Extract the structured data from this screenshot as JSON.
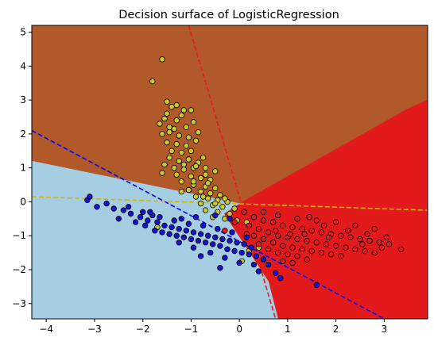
{
  "chart_data": {
    "type": "scatter",
    "title": "Decision surface of LogisticRegression",
    "xlabel": "",
    "ylabel": "",
    "xlim": [
      -4.3,
      3.9
    ],
    "ylim": [
      -3.45,
      5.2
    ],
    "xticks": [
      -4,
      -3,
      -2,
      -1,
      0,
      1,
      2,
      3
    ],
    "yticks": [
      -3,
      -2,
      -1,
      0,
      1,
      2,
      3,
      4,
      5
    ],
    "grid": false,
    "regions": [
      {
        "class": "yellow",
        "color": "#b15928",
        "polygon": [
          [
            -4.3,
            5.2
          ],
          [
            3.9,
            5.2
          ],
          [
            3.9,
            3.0
          ],
          [
            3.5,
            2.75
          ],
          [
            0,
            -0.05
          ],
          [
            -4.3,
            1.2
          ]
        ]
      },
      {
        "class": "red",
        "color": "#e31a1c",
        "polygon": [
          [
            0,
            -0.05
          ],
          [
            3.5,
            2.75
          ],
          [
            3.9,
            3.0
          ],
          [
            3.9,
            -3.45
          ],
          [
            0.8,
            -3.45
          ],
          [
            0.6,
            -2.35
          ],
          [
            -0.32,
            -0.35
          ]
        ]
      },
      {
        "class": "blue",
        "color": "#a6cee3",
        "polygon": [
          [
            -4.3,
            1.2
          ],
          [
            0,
            -0.05
          ],
          [
            -0.32,
            -0.35
          ],
          [
            0.6,
            -2.35
          ],
          [
            0.8,
            -3.45
          ],
          [
            -4.3,
            -3.45
          ]
        ]
      }
    ],
    "decision_lines": [
      {
        "color": "#e31a1c",
        "x": [
          -1.05,
          0.75
        ],
        "y": [
          5.2,
          -3.45
        ]
      },
      {
        "color": "#0000ff",
        "x": [
          -4.3,
          3.0
        ],
        "y": [
          2.1,
          -3.45
        ]
      },
      {
        "color": "#d4b500",
        "x": [
          -4.3,
          3.9
        ],
        "y": [
          0.15,
          -0.25
        ]
      }
    ],
    "series": [
      {
        "color": "#c8c832",
        "points": [
          [
            -1.6,
            4.2
          ],
          [
            -1.8,
            3.55
          ],
          [
            -1.5,
            2.95
          ],
          [
            -1.4,
            2.8
          ],
          [
            -1.5,
            2.6
          ],
          [
            -1.0,
            2.7
          ],
          [
            -1.2,
            2.55
          ],
          [
            -1.55,
            2.45
          ],
          [
            -1.65,
            2.3
          ],
          [
            -1.3,
            2.4
          ],
          [
            -1.45,
            2.2
          ],
          [
            -1.35,
            2.15
          ],
          [
            -1.1,
            2.2
          ],
          [
            -0.95,
            2.35
          ],
          [
            -1.6,
            2.0
          ],
          [
            -1.25,
            1.95
          ],
          [
            -1.05,
            1.9
          ],
          [
            -1.5,
            1.75
          ],
          [
            -1.3,
            1.7
          ],
          [
            -1.1,
            1.65
          ],
          [
            -0.9,
            1.8
          ],
          [
            -1.4,
            1.5
          ],
          [
            -1.2,
            1.45
          ],
          [
            -1.0,
            1.5
          ],
          [
            -0.75,
            1.3
          ],
          [
            -1.45,
            1.3
          ],
          [
            -1.25,
            1.2
          ],
          [
            -1.05,
            1.25
          ],
          [
            -0.85,
            1.15
          ],
          [
            -1.55,
            1.1
          ],
          [
            -1.35,
            1.0
          ],
          [
            -1.15,
            0.95
          ],
          [
            -0.95,
            1.0
          ],
          [
            -0.7,
            1.0
          ],
          [
            -0.5,
            0.9
          ],
          [
            -1.6,
            0.85
          ],
          [
            -1.3,
            0.8
          ],
          [
            -1.0,
            0.75
          ],
          [
            -0.8,
            0.7
          ],
          [
            -0.6,
            0.65
          ],
          [
            -1.2,
            0.6
          ],
          [
            -0.95,
            0.5
          ],
          [
            -0.7,
            0.45
          ],
          [
            -0.5,
            0.4
          ],
          [
            -1.05,
            0.35
          ],
          [
            -0.8,
            0.3
          ],
          [
            -0.6,
            0.25
          ],
          [
            -0.4,
            0.2
          ],
          [
            -0.9,
            0.15
          ],
          [
            -0.65,
            0.1
          ],
          [
            -0.45,
            0.05
          ],
          [
            -0.25,
            0.0
          ],
          [
            -0.8,
            -0.05
          ],
          [
            -0.55,
            -0.1
          ],
          [
            -0.35,
            -0.15
          ],
          [
            -0.1,
            -0.2
          ],
          [
            -0.7,
            -0.25
          ],
          [
            -0.45,
            -0.3
          ],
          [
            -0.2,
            -0.35
          ],
          [
            -0.55,
            -0.45
          ],
          [
            -0.3,
            -0.5
          ],
          [
            -0.05,
            -0.55
          ],
          [
            0.15,
            -0.6
          ],
          [
            -1.7,
            -0.75
          ],
          [
            0.2,
            -1.45
          ],
          [
            0.4,
            -1.35
          ],
          [
            0.05,
            -1.75
          ],
          [
            -0.9,
            1.05
          ],
          [
            -1.15,
            1.1
          ],
          [
            -0.75,
            0.15
          ],
          [
            -1.2,
            0.3
          ],
          [
            -0.95,
            0.6
          ],
          [
            -0.7,
            0.8
          ],
          [
            -0.85,
            2.05
          ],
          [
            -1.15,
            2.7
          ],
          [
            -1.3,
            2.85
          ],
          [
            -1.45,
            2.05
          ],
          [
            -0.65,
            0.55
          ],
          [
            -0.5,
            -0.05
          ],
          [
            -0.3,
            0.1
          ]
        ]
      },
      {
        "color": "#e31a1c",
        "points": [
          [
            0.1,
            -0.3
          ],
          [
            0.3,
            -0.45
          ],
          [
            0.5,
            -0.55
          ],
          [
            0.7,
            -0.6
          ],
          [
            0.9,
            -0.7
          ],
          [
            1.1,
            -0.75
          ],
          [
            1.3,
            -0.8
          ],
          [
            1.5,
            -0.85
          ],
          [
            1.7,
            -0.9
          ],
          [
            1.9,
            -0.95
          ],
          [
            2.1,
            -1.0
          ],
          [
            2.3,
            -1.05
          ],
          [
            2.5,
            -1.1
          ],
          [
            2.7,
            -1.15
          ],
          [
            2.9,
            -1.2
          ],
          [
            3.1,
            -1.25
          ],
          [
            0.2,
            -0.7
          ],
          [
            0.4,
            -0.8
          ],
          [
            0.6,
            -0.9
          ],
          [
            0.8,
            -1.0
          ],
          [
            1.0,
            -1.05
          ],
          [
            1.2,
            -1.1
          ],
          [
            1.4,
            -1.15
          ],
          [
            1.6,
            -1.2
          ],
          [
            1.8,
            -1.25
          ],
          [
            2.0,
            -1.3
          ],
          [
            2.2,
            -1.35
          ],
          [
            2.4,
            -1.4
          ],
          [
            2.6,
            -1.45
          ],
          [
            2.8,
            -1.5
          ],
          [
            0.3,
            -1.0
          ],
          [
            0.5,
            -1.1
          ],
          [
            0.7,
            -1.2
          ],
          [
            0.9,
            -1.3
          ],
          [
            1.1,
            -1.35
          ],
          [
            1.3,
            -1.4
          ],
          [
            1.5,
            -1.45
          ],
          [
            1.7,
            -1.5
          ],
          [
            1.9,
            -1.55
          ],
          [
            2.1,
            -1.6
          ],
          [
            0.6,
            -1.4
          ],
          [
            0.8,
            -1.5
          ],
          [
            1.0,
            -1.55
          ],
          [
            1.2,
            -1.6
          ],
          [
            1.4,
            -1.7
          ],
          [
            0.9,
            -1.75
          ],
          [
            1.1,
            -1.8
          ],
          [
            0.5,
            -0.3
          ],
          [
            0.8,
            -0.4
          ],
          [
            1.2,
            -0.5
          ],
          [
            1.6,
            -0.55
          ],
          [
            2.0,
            -0.6
          ],
          [
            2.4,
            -0.7
          ],
          [
            2.8,
            -0.8
          ],
          [
            1.45,
            -0.45
          ],
          [
            1.75,
            -0.7
          ],
          [
            2.25,
            -0.85
          ],
          [
            2.65,
            -0.95
          ],
          [
            3.05,
            -1.05
          ],
          [
            2.55,
            -1.25
          ],
          [
            2.95,
            -1.35
          ],
          [
            3.35,
            -1.4
          ],
          [
            1.35,
            -0.95
          ],
          [
            1.85,
            -1.05
          ],
          [
            0.4,
            -1.25
          ],
          [
            -0.1,
            -0.6
          ],
          [
            -0.3,
            -0.85
          ],
          [
            0.15,
            -0.95
          ],
          [
            0.75,
            -0.85
          ],
          [
            1.05,
            -0.95
          ]
        ]
      },
      {
        "color": "#1414d2",
        "points": [
          [
            -3.15,
            0.05
          ],
          [
            -3.1,
            0.15
          ],
          [
            -2.95,
            -0.15
          ],
          [
            -2.75,
            -0.05
          ],
          [
            -2.6,
            -0.2
          ],
          [
            -2.4,
            -0.25
          ],
          [
            -2.25,
            -0.35
          ],
          [
            -2.05,
            -0.45
          ],
          [
            -1.9,
            -0.55
          ],
          [
            -1.8,
            -0.4
          ],
          [
            -1.7,
            -0.6
          ],
          [
            -1.55,
            -0.7
          ],
          [
            -1.4,
            -0.75
          ],
          [
            -1.25,
            -0.8
          ],
          [
            -1.1,
            -0.85
          ],
          [
            -0.95,
            -0.9
          ],
          [
            -0.8,
            -0.95
          ],
          [
            -0.65,
            -1.0
          ],
          [
            -0.5,
            -1.05
          ],
          [
            -0.35,
            -1.1
          ],
          [
            -0.2,
            -1.15
          ],
          [
            -0.05,
            -1.2
          ],
          [
            0.1,
            -1.25
          ],
          [
            0.25,
            -1.35
          ],
          [
            -2.3,
            -0.15
          ],
          [
            -2.15,
            -0.6
          ],
          [
            -1.95,
            -0.7
          ],
          [
            -1.75,
            -0.85
          ],
          [
            -1.6,
            -0.9
          ],
          [
            -1.45,
            -0.95
          ],
          [
            -1.3,
            -1.0
          ],
          [
            -1.15,
            -1.05
          ],
          [
            -1.0,
            -1.1
          ],
          [
            -0.85,
            -1.15
          ],
          [
            -0.7,
            -1.2
          ],
          [
            -0.55,
            -1.25
          ],
          [
            -0.4,
            -1.3
          ],
          [
            -0.25,
            -1.4
          ],
          [
            -0.1,
            -1.45
          ],
          [
            0.05,
            -1.5
          ],
          [
            0.2,
            -1.55
          ],
          [
            0.35,
            -1.6
          ],
          [
            0.5,
            -1.7
          ],
          [
            0.6,
            -1.85
          ],
          [
            0.75,
            -2.1
          ],
          [
            0.85,
            -2.25
          ],
          [
            -1.85,
            -0.3
          ],
          [
            -1.65,
            -0.45
          ],
          [
            -1.35,
            -0.55
          ],
          [
            -1.05,
            -0.65
          ],
          [
            -0.75,
            -0.7
          ],
          [
            -0.45,
            -0.8
          ],
          [
            -0.15,
            -0.9
          ],
          [
            0.15,
            -1.05
          ],
          [
            -0.6,
            -1.5
          ],
          [
            -0.3,
            -1.65
          ],
          [
            0.0,
            -1.8
          ],
          [
            -0.95,
            -1.35
          ],
          [
            -1.25,
            -1.2
          ],
          [
            0.4,
            -2.05
          ],
          [
            1.6,
            -2.45
          ],
          [
            -0.5,
            -0.4
          ],
          [
            -0.2,
            -0.5
          ],
          [
            -2.5,
            -0.5
          ],
          [
            -2.0,
            -0.3
          ],
          [
            -1.2,
            -0.5
          ],
          [
            -0.9,
            -0.45
          ],
          [
            0.3,
            -1.85
          ],
          [
            -0.8,
            -1.6
          ],
          [
            -0.4,
            -1.95
          ]
        ]
      }
    ]
  }
}
